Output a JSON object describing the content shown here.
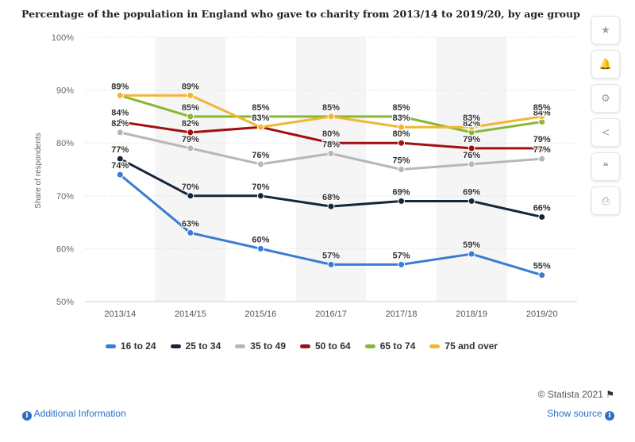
{
  "page": {
    "title": "Percentage of the population in England who gave to charity from 2013/14 to 2019/20, by age group",
    "credit": "© Statista 2021",
    "info_link": "Additional Information",
    "source_link": "Show source",
    "colors": {
      "accent": "#2f6ec7",
      "background": "#ffffff"
    }
  },
  "toolbar": [
    {
      "name": "star-icon",
      "glyph": "★"
    },
    {
      "name": "bell-icon",
      "glyph": "🔔"
    },
    {
      "name": "gear-icon",
      "glyph": "⚙"
    },
    {
      "name": "share-icon",
      "glyph": "<"
    },
    {
      "name": "quote-icon",
      "glyph": "❝"
    },
    {
      "name": "print-icon",
      "glyph": "⎙"
    }
  ],
  "chart_data": {
    "type": "line",
    "title": "Percentage of the population in England who gave to charity from 2013/14 to 2019/20, by age group",
    "xlabel": "",
    "ylabel": "Share of respondents",
    "categories": [
      "2013/14",
      "2014/15",
      "2015/16",
      "2016/17",
      "2017/18",
      "2018/19",
      "2019/20"
    ],
    "ylim": [
      50,
      100
    ],
    "yticks": [
      50,
      60,
      70,
      80,
      90,
      100
    ],
    "ytick_labels": [
      "50%",
      "60%",
      "70%",
      "80%",
      "90%",
      "100%"
    ],
    "grid": true,
    "legend_position": "bottom",
    "series": [
      {
        "name": "16 to 24",
        "color": "#3a7bd5",
        "values": [
          74,
          63,
          60,
          57,
          57,
          59,
          55
        ],
        "labels": [
          "74%",
          "63%",
          "60%",
          "57%",
          "57%",
          "59%",
          "55%"
        ]
      },
      {
        "name": "25 to 34",
        "color": "#14263a",
        "values": [
          77,
          70,
          70,
          68,
          69,
          69,
          66
        ],
        "labels": [
          "77%",
          "70%",
          "70%",
          "68%",
          "69%",
          "69%",
          "66%"
        ]
      },
      {
        "name": "35 to 49",
        "color": "#b7b7b7",
        "values": [
          82,
          79,
          76,
          78,
          75,
          76,
          77
        ],
        "labels": [
          "82%",
          "79%",
          "76%",
          "78%",
          "75%",
          "76%",
          "77%"
        ]
      },
      {
        "name": "50 to 64",
        "color": "#a01010",
        "values": [
          84,
          82,
          83,
          80,
          80,
          79,
          79
        ],
        "labels": [
          "84%",
          "82%",
          "83%",
          "80%",
          "80%",
          "79%",
          "79%"
        ]
      },
      {
        "name": "65 to 74",
        "color": "#87b833",
        "values": [
          89,
          85,
          85,
          85,
          85,
          82,
          84
        ],
        "labels": [
          "89%",
          "85%",
          "85%",
          "85%",
          "85%",
          "82%",
          "84%"
        ]
      },
      {
        "name": "75 and over",
        "color": "#f2b632",
        "values": [
          89,
          89,
          83,
          85,
          83,
          83,
          85
        ],
        "labels": [
          "89%",
          "89%",
          "83%",
          "85%",
          "83%",
          "83%",
          "85%"
        ]
      }
    ]
  }
}
